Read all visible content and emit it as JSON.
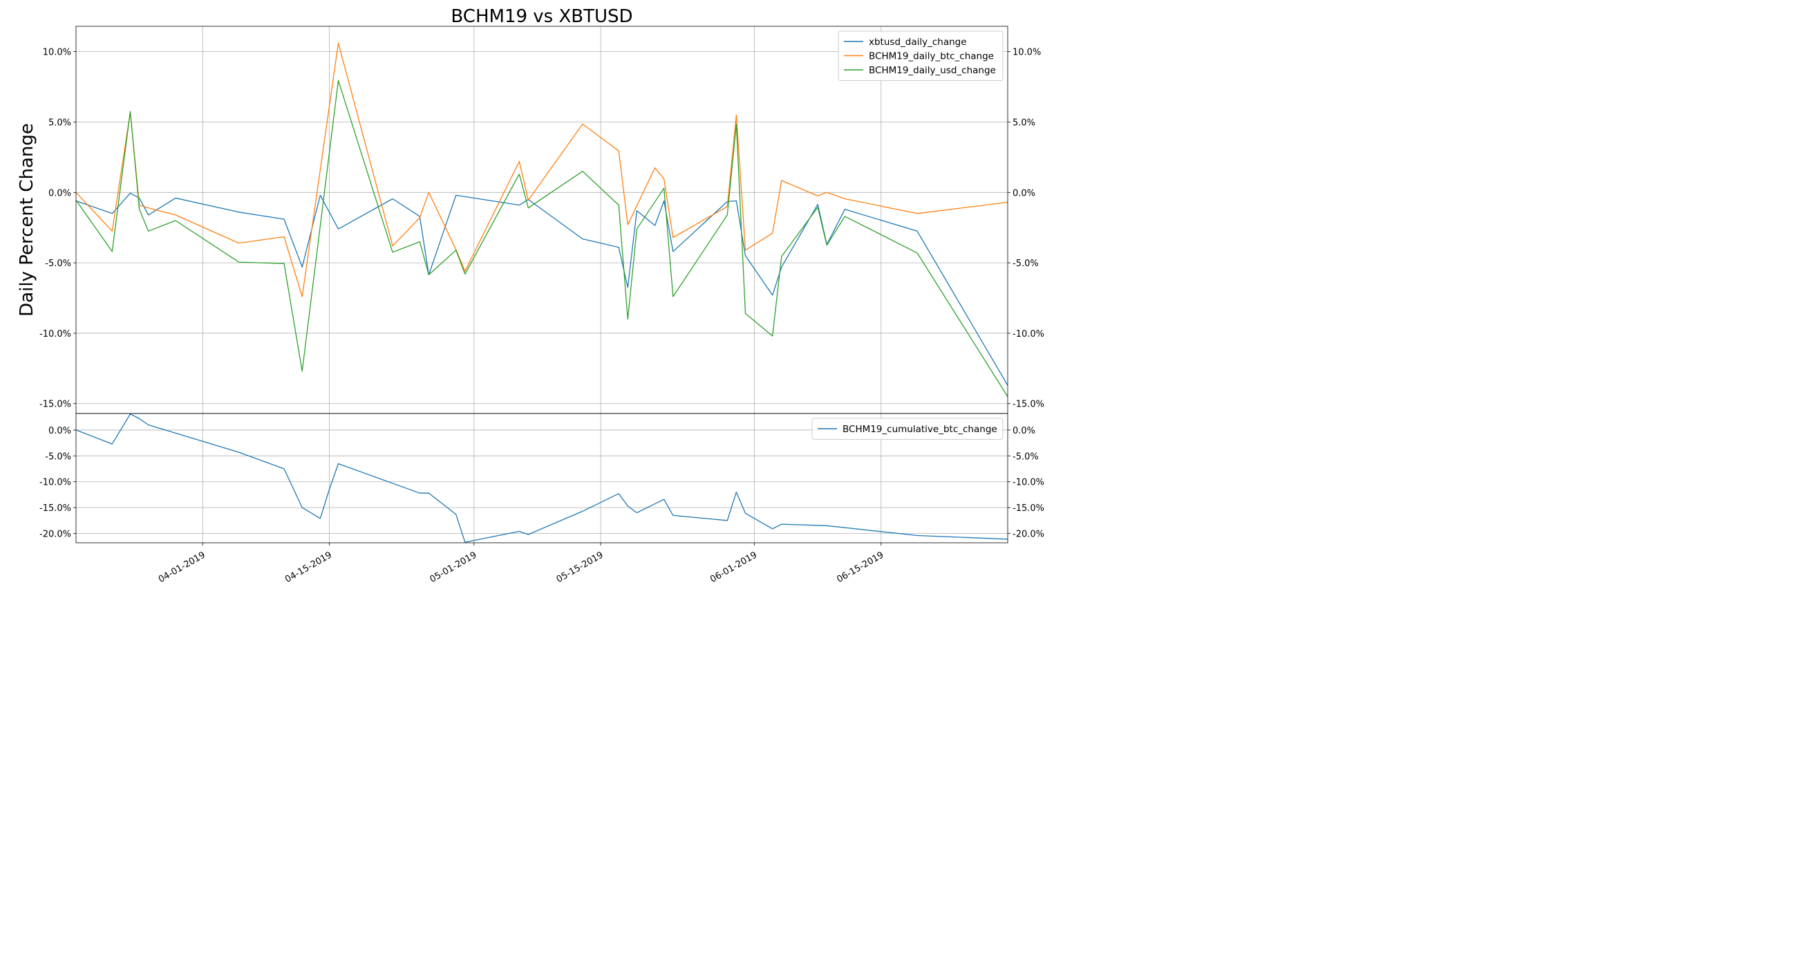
{
  "chart_data": [
    {
      "type": "line",
      "title": "BCHM19 vs XBTUSD",
      "ylabel": "Daily Percent Change",
      "ylim": [
        -15.7,
        11.8
      ],
      "yticks": [
        10,
        5,
        0,
        -5,
        -10,
        -15
      ],
      "ytick_labels": [
        "10.0%",
        "5.0%",
        "0.0%",
        "-5.0%",
        "-10.0%",
        "-15.0%"
      ],
      "grid": true,
      "legend_position": "top-right",
      "series": [
        {
          "name": "xbtusd_daily_change",
          "color": "#1f77b4",
          "points": [
            [
              "2019-03-18",
              -0.6
            ],
            [
              "2019-03-22",
              -1.5
            ],
            [
              "2019-03-24",
              -0.05
            ],
            [
              "2019-03-25",
              -0.4
            ],
            [
              "2019-03-26",
              -1.6
            ],
            [
              "2019-03-29",
              -0.4
            ],
            [
              "2019-04-05",
              -1.4
            ],
            [
              "2019-04-10",
              -1.9
            ],
            [
              "2019-04-12",
              -5.3
            ],
            [
              "2019-04-14",
              -0.2
            ],
            [
              "2019-04-16",
              -2.6
            ],
            [
              "2019-04-22",
              -0.45
            ],
            [
              "2019-04-25",
              -1.7
            ],
            [
              "2019-04-26",
              -5.85
            ],
            [
              "2019-04-29",
              -0.2
            ],
            [
              "2019-05-06",
              -0.9
            ],
            [
              "2019-05-07",
              -0.5
            ],
            [
              "2019-05-13",
              -3.3
            ],
            [
              "2019-05-17",
              -3.9
            ],
            [
              "2019-05-18",
              -6.75
            ],
            [
              "2019-05-19",
              -1.3
            ],
            [
              "2019-05-21",
              -2.35
            ],
            [
              "2019-05-22",
              -0.6
            ],
            [
              "2019-05-23",
              -4.2
            ],
            [
              "2019-05-29",
              -0.65
            ],
            [
              "2019-05-30",
              -0.6
            ],
            [
              "2019-05-31",
              -4.5
            ],
            [
              "2019-06-03",
              -7.3
            ],
            [
              "2019-06-04",
              -5.3
            ],
            [
              "2019-06-08",
              -0.85
            ],
            [
              "2019-06-09",
              -3.7
            ],
            [
              "2019-06-11",
              -1.2
            ],
            [
              "2019-06-19",
              -2.75
            ],
            [
              "2019-06-29",
              -13.7
            ]
          ]
        },
        {
          "name": "BCHM19_daily_btc_change",
          "color": "#ff7f0e",
          "points": [
            [
              "2019-03-18",
              0.0
            ],
            [
              "2019-03-22",
              -2.75
            ],
            [
              "2019-03-24",
              5.7
            ],
            [
              "2019-03-25",
              -0.9
            ],
            [
              "2019-03-26",
              -1.1
            ],
            [
              "2019-03-29",
              -1.6
            ],
            [
              "2019-04-05",
              -3.6
            ],
            [
              "2019-04-10",
              -3.15
            ],
            [
              "2019-04-12",
              -7.4
            ],
            [
              "2019-04-16",
              10.6
            ],
            [
              "2019-04-22",
              -3.8
            ],
            [
              "2019-04-25",
              -1.8
            ],
            [
              "2019-04-26",
              0.0
            ],
            [
              "2019-04-29",
              -4.05
            ],
            [
              "2019-04-30",
              -5.6
            ],
            [
              "2019-05-06",
              2.2
            ],
            [
              "2019-05-07",
              -0.55
            ],
            [
              "2019-05-13",
              4.85
            ],
            [
              "2019-05-17",
              2.95
            ],
            [
              "2019-05-18",
              -2.3
            ],
            [
              "2019-05-21",
              1.75
            ],
            [
              "2019-05-22",
              0.95
            ],
            [
              "2019-05-23",
              -3.2
            ],
            [
              "2019-05-29",
              -1.0
            ],
            [
              "2019-05-30",
              5.5
            ],
            [
              "2019-05-31",
              -4.1
            ],
            [
              "2019-06-03",
              -2.9
            ],
            [
              "2019-06-04",
              0.85
            ],
            [
              "2019-06-08",
              -0.25
            ],
            [
              "2019-06-09",
              0.0
            ],
            [
              "2019-06-11",
              -0.45
            ],
            [
              "2019-06-19",
              -1.5
            ],
            [
              "2019-06-29",
              -0.7
            ]
          ]
        },
        {
          "name": "BCHM19_daily_usd_change",
          "color": "#2ca02c",
          "points": [
            [
              "2019-03-18",
              -0.55
            ],
            [
              "2019-03-22",
              -4.2
            ],
            [
              "2019-03-24",
              5.75
            ],
            [
              "2019-03-25",
              -1.2
            ],
            [
              "2019-03-26",
              -2.75
            ],
            [
              "2019-03-29",
              -2.0
            ],
            [
              "2019-04-05",
              -4.95
            ],
            [
              "2019-04-10",
              -5.05
            ],
            [
              "2019-04-12",
              -12.7
            ],
            [
              "2019-04-16",
              7.95
            ],
            [
              "2019-04-22",
              -4.25
            ],
            [
              "2019-04-25",
              -3.5
            ],
            [
              "2019-04-26",
              -5.85
            ],
            [
              "2019-04-29",
              -4.1
            ],
            [
              "2019-04-30",
              -5.8
            ],
            [
              "2019-05-06",
              1.3
            ],
            [
              "2019-05-07",
              -1.1
            ],
            [
              "2019-05-13",
              1.5
            ],
            [
              "2019-05-17",
              -0.9
            ],
            [
              "2019-05-18",
              -9.0
            ],
            [
              "2019-05-19",
              -2.6
            ],
            [
              "2019-05-22",
              0.3
            ],
            [
              "2019-05-23",
              -7.4
            ],
            [
              "2019-05-29",
              -1.6
            ],
            [
              "2019-05-30",
              4.85
            ],
            [
              "2019-05-31",
              -8.6
            ],
            [
              "2019-06-03",
              -10.2
            ],
            [
              "2019-06-04",
              -4.55
            ],
            [
              "2019-06-08",
              -1.05
            ],
            [
              "2019-06-09",
              -3.75
            ],
            [
              "2019-06-11",
              -1.7
            ],
            [
              "2019-06-19",
              -4.3
            ],
            [
              "2019-06-29",
              -14.5
            ]
          ]
        }
      ]
    },
    {
      "type": "line",
      "ylim": [
        -21.8,
        3.2
      ],
      "yticks": [
        0,
        -5,
        -10,
        -15,
        -20
      ],
      "ytick_labels": [
        "0.0%",
        "-5.0%",
        "-10.0%",
        "-15.0%",
        "-20.0%"
      ],
      "xlim": [
        "2019-03-18",
        "2019-06-29"
      ],
      "xticks": [
        "2019-04-01",
        "2019-04-15",
        "2019-05-01",
        "2019-05-15",
        "2019-06-01",
        "2019-06-15"
      ],
      "xtick_labels": [
        "04-01-2019",
        "04-15-2019",
        "05-01-2019",
        "05-15-2019",
        "06-01-2019",
        "06-15-2019"
      ],
      "grid": true,
      "legend_position": "top-right",
      "series": [
        {
          "name": "BCHM19_cumulative_btc_change",
          "color": "#1f77b4",
          "points": [
            [
              "2019-03-18",
              0.0
            ],
            [
              "2019-03-22",
              -2.7
            ],
            [
              "2019-03-24",
              3.1
            ],
            [
              "2019-03-25",
              2.2
            ],
            [
              "2019-03-26",
              1.0
            ],
            [
              "2019-04-05",
              -4.3
            ],
            [
              "2019-04-10",
              -7.5
            ],
            [
              "2019-04-12",
              -15.0
            ],
            [
              "2019-04-14",
              -17.1
            ],
            [
              "2019-04-15",
              -11.5
            ],
            [
              "2019-04-16",
              -6.5
            ],
            [
              "2019-04-25",
              -12.2
            ],
            [
              "2019-04-26",
              -12.2
            ],
            [
              "2019-04-29",
              -16.3
            ],
            [
              "2019-04-30",
              -21.7
            ],
            [
              "2019-05-06",
              -19.6
            ],
            [
              "2019-05-07",
              -20.2
            ],
            [
              "2019-05-13",
              -15.7
            ],
            [
              "2019-05-17",
              -12.3
            ],
            [
              "2019-05-18",
              -14.7
            ],
            [
              "2019-05-19",
              -16.0
            ],
            [
              "2019-05-22",
              -13.4
            ],
            [
              "2019-05-23",
              -16.5
            ],
            [
              "2019-05-29",
              -17.5
            ],
            [
              "2019-05-30",
              -12.0
            ],
            [
              "2019-05-31",
              -16.1
            ],
            [
              "2019-06-03",
              -19.1
            ],
            [
              "2019-06-04",
              -18.2
            ],
            [
              "2019-06-09",
              -18.5
            ],
            [
              "2019-06-19",
              -20.4
            ],
            [
              "2019-06-29",
              -21.1
            ]
          ]
        }
      ]
    }
  ]
}
